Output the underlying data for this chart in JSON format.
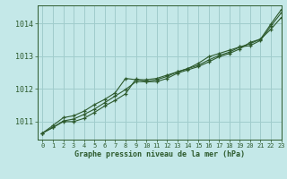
{
  "title": "Graphe pression niveau de la mer (hPa)",
  "bg_color": "#c4e8e8",
  "grid_color": "#a0cccc",
  "line_color": "#2d5a2d",
  "marker_color": "#2d5a2d",
  "xlim": [
    -0.5,
    23
  ],
  "ylim": [
    1010.45,
    1014.55
  ],
  "yticks": [
    1011,
    1012,
    1013,
    1014
  ],
  "xticks": [
    0,
    1,
    2,
    3,
    4,
    5,
    6,
    7,
    8,
    9,
    10,
    11,
    12,
    13,
    14,
    15,
    16,
    17,
    18,
    19,
    20,
    21,
    22,
    23
  ],
  "series": [
    [
      1010.65,
      1010.82,
      1011.0,
      1011.0,
      1011.1,
      1011.28,
      1011.48,
      1011.65,
      1011.85,
      1012.3,
      1012.22,
      1012.22,
      1012.32,
      1012.48,
      1012.58,
      1012.68,
      1012.82,
      1012.98,
      1013.08,
      1013.22,
      1013.42,
      1013.52,
      1013.82,
      1014.18
    ],
    [
      1010.65,
      1010.82,
      1011.02,
      1011.08,
      1011.22,
      1011.38,
      1011.58,
      1011.78,
      1011.98,
      1012.22,
      1012.22,
      1012.28,
      1012.38,
      1012.52,
      1012.62,
      1012.72,
      1012.88,
      1013.02,
      1013.12,
      1013.28,
      1013.32,
      1013.48,
      1013.92,
      1014.32
    ],
    [
      1010.65,
      1010.88,
      1011.12,
      1011.18,
      1011.32,
      1011.52,
      1011.68,
      1011.88,
      1012.32,
      1012.28,
      1012.28,
      1012.32,
      1012.42,
      1012.52,
      1012.62,
      1012.78,
      1012.98,
      1013.08,
      1013.18,
      1013.28,
      1013.38,
      1013.52,
      1013.98,
      1014.42
    ]
  ]
}
